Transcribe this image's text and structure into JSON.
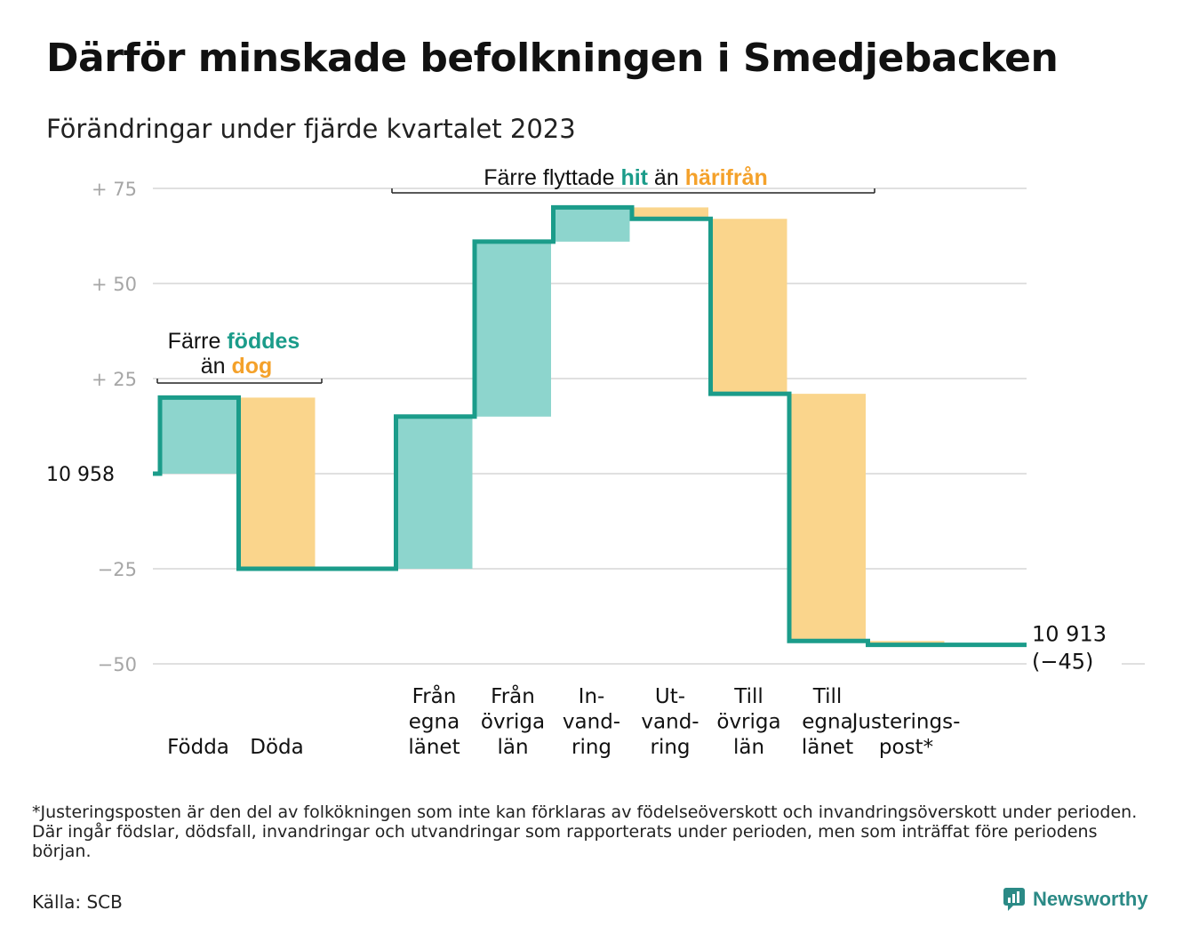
{
  "title": "Därför minskade befolkningen i Smedjebacken",
  "subtitle": "Förändringar under fjärde kvartalet 2023",
  "footnote": "*Justeringsposten är den del av folkökningen som inte kan förklaras av födelseöverskott och invandringsöverskott under perioden. Där ingår födslar, dödsfall, invandringar och utvandringar som rapporterats under perioden, men som inträffat före periodens början.",
  "source": "Källa: SCB",
  "brand": {
    "name": "Newsworthy",
    "icon": "newsworthy-logo-icon"
  },
  "colors": {
    "increase": "#8dd5cd",
    "decrease": "#fad58c",
    "line": "#1b9c8a",
    "accent_orange": "#f4a12a",
    "grid": "#e0e0e0",
    "tick": "#a6a6a6"
  },
  "annotations": {
    "births": {
      "prefix": "Färre",
      "highlight": "föddes",
      "connector": "än",
      "highlight2": "dog"
    },
    "migration": {
      "prefix": "Färre flyttade",
      "highlight": "hit",
      "connector": "än",
      "highlight2": "härifrån"
    }
  },
  "chart_data": {
    "type": "waterfall",
    "start": {
      "value": 10958,
      "label": "10  958"
    },
    "end": {
      "value": 10913,
      "change": -45,
      "label": "10 913",
      "change_label": "(−45)"
    },
    "y_relative_to_start": true,
    "ylim": [
      -50,
      75
    ],
    "ticks": [
      {
        "value": 75,
        "label": "+  75"
      },
      {
        "value": 50,
        "label": "+  50"
      },
      {
        "value": 25,
        "label": "+  25"
      },
      {
        "value": -25,
        "label": "−25"
      },
      {
        "value": -50,
        "label": "−50"
      }
    ],
    "grid": true,
    "categories": [
      {
        "lines": [
          "Födda"
        ],
        "value": 20,
        "kind": "increase"
      },
      {
        "lines": [
          "Döda"
        ],
        "value": -45,
        "kind": "decrease"
      },
      {
        "lines": [
          ""
        ],
        "value": 0,
        "kind": "gap"
      },
      {
        "lines": [
          "Från",
          "egna",
          "länet"
        ],
        "value": 40,
        "kind": "increase"
      },
      {
        "lines": [
          "Från",
          "övriga",
          "län"
        ],
        "value": 46,
        "kind": "increase"
      },
      {
        "lines": [
          "In-",
          "vand-",
          "ring"
        ],
        "value": 9,
        "kind": "increase"
      },
      {
        "lines": [
          "Ut-",
          "vand-",
          "ring"
        ],
        "value": -3,
        "kind": "decrease"
      },
      {
        "lines": [
          "Till",
          "övriga",
          "län"
        ],
        "value": -46,
        "kind": "decrease"
      },
      {
        "lines": [
          "Till",
          "egna",
          "länet"
        ],
        "value": -65,
        "kind": "decrease"
      },
      {
        "lines": [
          "Justerings-",
          "post*"
        ],
        "value": -1,
        "kind": "decrease"
      }
    ]
  }
}
